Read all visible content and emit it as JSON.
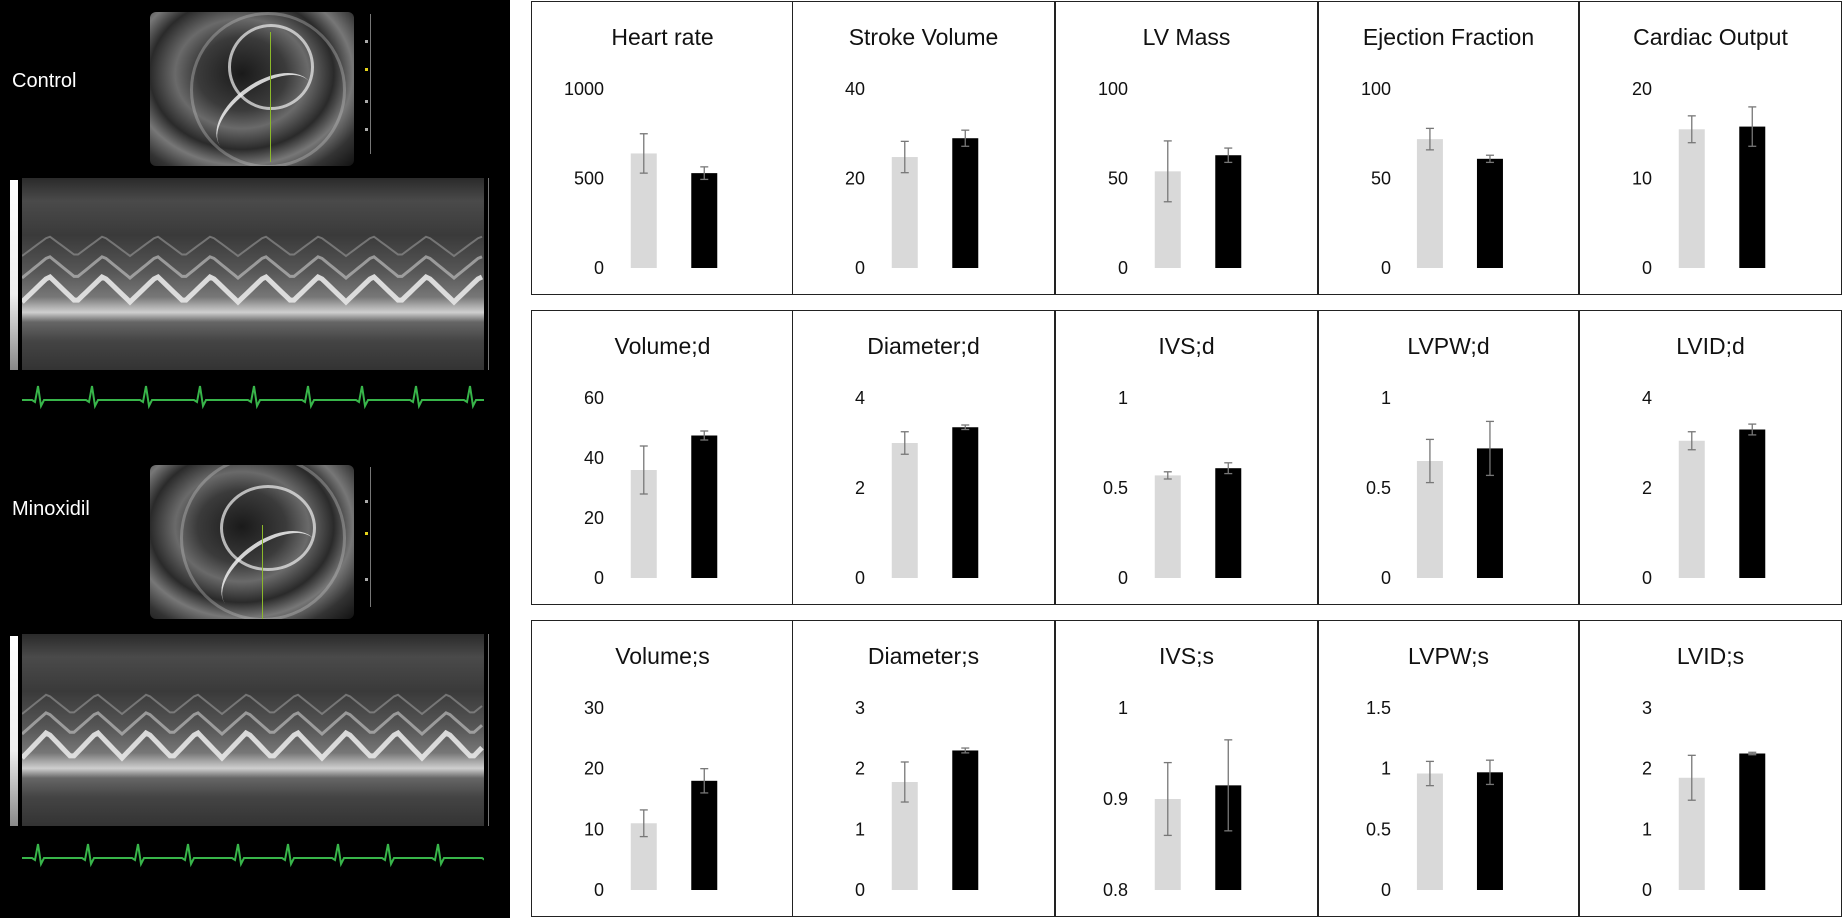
{
  "echo": {
    "groups": [
      {
        "label": "Control"
      },
      {
        "label": "Minoxidil"
      }
    ]
  },
  "colors": {
    "control_bar": "#d9d9d9",
    "minoxidil_bar": "#000000",
    "error_bar": "#777777",
    "ecg": "#38b54a"
  },
  "chart_data": [
    {
      "type": "bar",
      "title": "Heart rate",
      "categories": [
        "Control",
        "Minoxidil"
      ],
      "values": [
        640,
        530
      ],
      "errors": [
        110,
        35
      ],
      "ticks": [
        "0",
        "500",
        "1000"
      ],
      "ylim": [
        0,
        1000
      ]
    },
    {
      "type": "bar",
      "title": "Stroke Volume",
      "categories": [
        "Control",
        "Minoxidil"
      ],
      "values": [
        24.8,
        29
      ],
      "errors": [
        3.5,
        1.8
      ],
      "ticks": [
        "0",
        "20",
        "40"
      ],
      "ylim": [
        0,
        40
      ]
    },
    {
      "type": "bar",
      "title": "LV Mass",
      "categories": [
        "Control",
        "Minoxidil"
      ],
      "values": [
        54,
        63
      ],
      "errors": [
        17,
        4
      ],
      "ticks": [
        "0",
        "50",
        "100"
      ],
      "ylim": [
        0,
        100
      ]
    },
    {
      "type": "bar",
      "title": "Ejection Fraction",
      "categories": [
        "Control",
        "Minoxidil"
      ],
      "values": [
        72,
        61
      ],
      "errors": [
        6,
        2
      ],
      "ticks": [
        "0",
        "50",
        "100"
      ],
      "ylim": [
        0,
        100
      ]
    },
    {
      "type": "bar",
      "title": "Cardiac Output",
      "categories": [
        "Control",
        "Minoxidil"
      ],
      "values": [
        15.5,
        15.8
      ],
      "errors": [
        1.5,
        2.2
      ],
      "ticks": [
        "0",
        "10",
        "20"
      ],
      "ylim": [
        0,
        20
      ]
    },
    {
      "type": "bar",
      "title": "Volume;d",
      "categories": [
        "Control",
        "Minoxidil"
      ],
      "values": [
        36,
        47.5
      ],
      "errors": [
        8,
        1.5
      ],
      "ticks": [
        "0",
        "20",
        "40",
        "60"
      ],
      "ylim": [
        0,
        60
      ]
    },
    {
      "type": "bar",
      "title": "Diameter;d",
      "categories": [
        "Control",
        "Minoxidil"
      ],
      "values": [
        3.0,
        3.35
      ],
      "errors": [
        0.25,
        0.05
      ],
      "ticks": [
        "0",
        "2",
        "4"
      ],
      "ylim": [
        0,
        4
      ]
    },
    {
      "type": "bar",
      "title": "IVS;d",
      "categories": [
        "Control",
        "Minoxidil"
      ],
      "values": [
        0.57,
        0.61
      ],
      "errors": [
        0.02,
        0.03
      ],
      "ticks": [
        "0",
        "0.5",
        "1"
      ],
      "ylim": [
        0,
        1
      ]
    },
    {
      "type": "bar",
      "title": "LVPW;d",
      "categories": [
        "Control",
        "Minoxidil"
      ],
      "values": [
        0.65,
        0.72
      ],
      "errors": [
        0.12,
        0.15
      ],
      "ticks": [
        "0",
        "0.5",
        "1"
      ],
      "ylim": [
        0,
        1
      ]
    },
    {
      "type": "bar",
      "title": "LVID;d",
      "categories": [
        "Control",
        "Minoxidil"
      ],
      "values": [
        3.05,
        3.3
      ],
      "errors": [
        0.2,
        0.12
      ],
      "ticks": [
        "0",
        "2",
        "4"
      ],
      "ylim": [
        0,
        4
      ]
    },
    {
      "type": "bar",
      "title": "Volume;s",
      "categories": [
        "Control",
        "Minoxidil"
      ],
      "values": [
        11,
        18
      ],
      "errors": [
        2.2,
        2
      ],
      "ticks": [
        "0",
        "10",
        "20",
        "30"
      ],
      "ylim": [
        0,
        30
      ]
    },
    {
      "type": "bar",
      "title": "Diameter;s",
      "categories": [
        "Control",
        "Minoxidil"
      ],
      "values": [
        1.78,
        2.3
      ],
      "errors": [
        0.33,
        0.04
      ],
      "ticks": [
        "0",
        "1",
        "2",
        "3"
      ],
      "ylim": [
        0,
        3
      ]
    },
    {
      "type": "bar",
      "title": "IVS;s",
      "categories": [
        "Control",
        "Minoxidil"
      ],
      "values": [
        0.9,
        0.915
      ],
      "errors": [
        0.04,
        0.05
      ],
      "ticks": [
        "0.8",
        "0.9",
        "1"
      ],
      "ylim": [
        0.8,
        1
      ]
    },
    {
      "type": "bar",
      "title": "LVPW;s",
      "categories": [
        "Control",
        "Minoxidil"
      ],
      "values": [
        0.96,
        0.97
      ],
      "errors": [
        0.1,
        0.1
      ],
      "ticks": [
        "0",
        "0.5",
        "1",
        "1.5"
      ],
      "ylim": [
        0,
        1.5
      ]
    },
    {
      "type": "bar",
      "title": "LVID;s",
      "categories": [
        "Control",
        "Minoxidil"
      ],
      "values": [
        1.85,
        2.25
      ],
      "errors": [
        0.37,
        0.02
      ],
      "ticks": [
        "0",
        "1",
        "2",
        "3"
      ],
      "ylim": [
        0,
        3
      ]
    }
  ]
}
